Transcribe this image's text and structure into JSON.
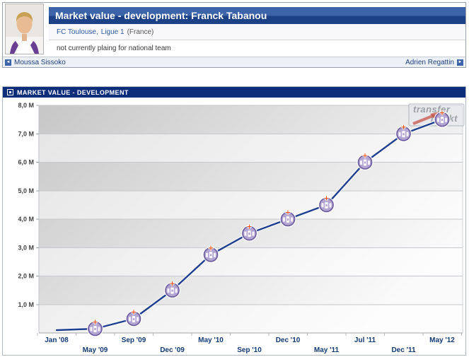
{
  "header": {
    "title": "Market value - development: Franck Tabanou",
    "club": "FC Toulouse,",
    "league": "Ligue 1",
    "country": "(France)",
    "national_team_status": "not currently plaing for national team",
    "prev_player": "Moussa Sissoko",
    "next_player": "Adrien Regattin",
    "prev_icon": "◄",
    "next_icon": "►"
  },
  "section": {
    "title": "MARKET VALUE - DEVELOPMENT"
  },
  "watermark": {
    "line1": "transfer",
    "line2": "markt"
  },
  "chart_data": {
    "type": "line",
    "title": "MARKET VALUE - DEVELOPMENT",
    "x": [
      "Jan '08",
      "May '09",
      "Sep '09",
      "Dec '09",
      "May '10",
      "Sep '10",
      "Dec '10",
      "May '11",
      "Jul '11",
      "Dec '11",
      "May '12"
    ],
    "values_million_eur": [
      0.1,
      0.15,
      0.5,
      1.5,
      2.75,
      3.5,
      4.0,
      4.5,
      6.0,
      7.0,
      7.5
    ],
    "y_tick_labels": [
      "8,0 M",
      "7,0 M",
      "6,0 M",
      "5,0 M",
      "4,0 M",
      "3,0 M",
      "2,0 M",
      "1,0 M"
    ],
    "ylim": [
      0,
      8
    ],
    "grid": "horizontal-bands",
    "legend": "none",
    "first_point_has_marker": false,
    "line_color": "#1e3f8f",
    "marker_fill": "#b4a6d2",
    "marker_ring": "#6a5a9e",
    "marker_plus_color": "#e8500f",
    "band_dark": "#c4c4c4",
    "band_light": "#e3e3e3",
    "grid_color": "#c5c8cc",
    "axis_color": "#a0a4a8",
    "x_label_color": "#123a75",
    "y_label_color": "#3f3f3f"
  }
}
